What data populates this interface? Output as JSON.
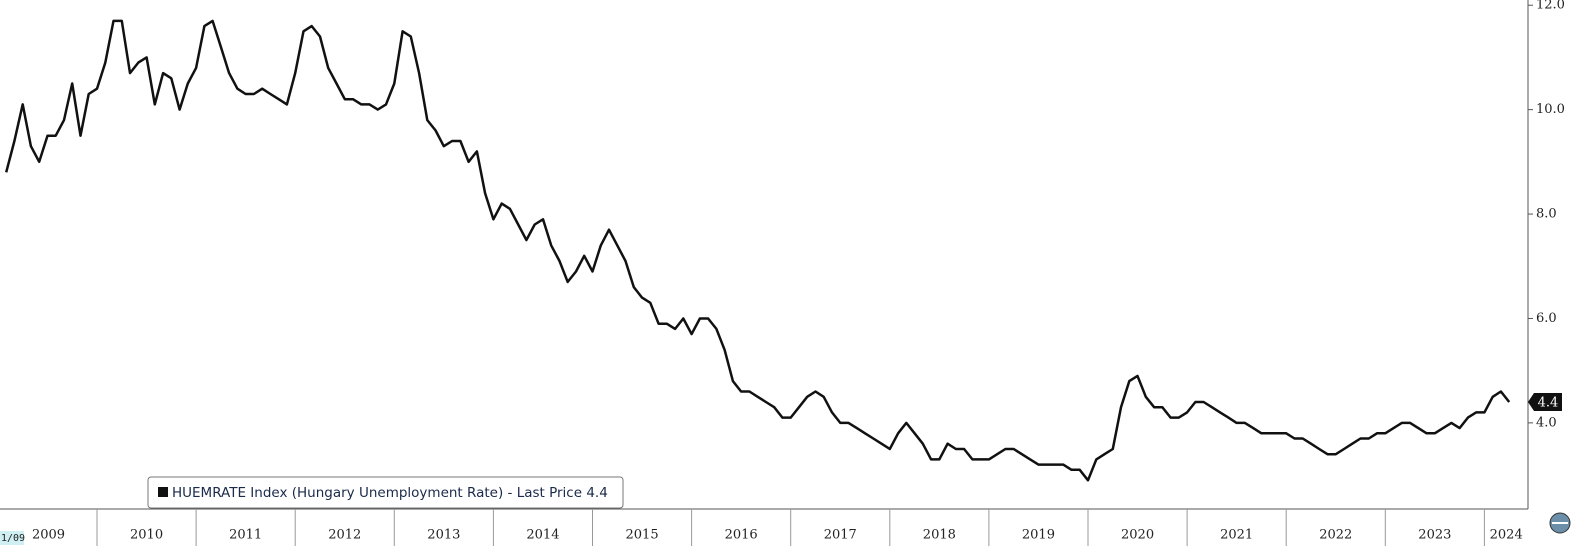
{
  "chart_data": {
    "type": "line",
    "range_start_label": "1/09",
    "x": [
      "2009-02",
      "2009-03",
      "2009-04",
      "2009-05",
      "2009-06",
      "2009-07",
      "2009-08",
      "2009-09",
      "2009-10",
      "2009-11",
      "2009-12",
      "2010-01",
      "2010-02",
      "2010-03",
      "2010-04",
      "2010-05",
      "2010-06",
      "2010-07",
      "2010-08",
      "2010-09",
      "2010-10",
      "2010-11",
      "2010-12",
      "2011-01",
      "2011-02",
      "2011-03",
      "2011-04",
      "2011-05",
      "2011-06",
      "2011-07",
      "2011-08",
      "2011-09",
      "2011-10",
      "2011-11",
      "2011-12",
      "2012-01",
      "2012-02",
      "2012-03",
      "2012-04",
      "2012-05",
      "2012-06",
      "2012-07",
      "2012-08",
      "2012-09",
      "2012-10",
      "2012-11",
      "2012-12",
      "2013-01",
      "2013-02",
      "2013-03",
      "2013-04",
      "2013-05",
      "2013-06",
      "2013-07",
      "2013-08",
      "2013-09",
      "2013-10",
      "2013-11",
      "2013-12",
      "2014-01",
      "2014-02",
      "2014-03",
      "2014-04",
      "2014-05",
      "2014-06",
      "2014-07",
      "2014-08",
      "2014-09",
      "2014-10",
      "2014-11",
      "2014-12",
      "2015-01",
      "2015-02",
      "2015-03",
      "2015-04",
      "2015-05",
      "2015-06",
      "2015-07",
      "2015-08",
      "2015-09",
      "2015-10",
      "2015-11",
      "2015-12",
      "2016-01",
      "2016-02",
      "2016-03",
      "2016-04",
      "2016-05",
      "2016-06",
      "2016-07",
      "2016-08",
      "2016-09",
      "2016-10",
      "2016-11",
      "2016-12",
      "2017-01",
      "2017-02",
      "2017-03",
      "2017-04",
      "2017-05",
      "2017-06",
      "2017-07",
      "2017-08",
      "2017-09",
      "2017-10",
      "2017-11",
      "2017-12",
      "2018-01",
      "2018-02",
      "2018-03",
      "2018-04",
      "2018-05",
      "2018-06",
      "2018-07",
      "2018-08",
      "2018-09",
      "2018-10",
      "2018-11",
      "2018-12",
      "2019-01",
      "2019-02",
      "2019-03",
      "2019-04",
      "2019-05",
      "2019-06",
      "2019-07",
      "2019-08",
      "2019-09",
      "2019-10",
      "2019-11",
      "2019-12",
      "2020-01",
      "2020-02",
      "2020-03",
      "2020-04",
      "2020-05",
      "2020-06",
      "2020-07",
      "2020-08",
      "2020-09",
      "2020-10",
      "2020-11",
      "2020-12",
      "2021-01",
      "2021-02",
      "2021-03",
      "2021-04",
      "2021-05",
      "2021-06",
      "2021-07",
      "2021-08",
      "2021-09",
      "2021-10",
      "2021-11",
      "2021-12",
      "2022-01",
      "2022-02",
      "2022-03",
      "2022-04",
      "2022-05",
      "2022-06",
      "2022-07",
      "2022-08",
      "2022-09",
      "2022-10",
      "2022-11",
      "2022-12",
      "2023-01",
      "2023-02",
      "2023-03",
      "2023-04",
      "2023-05",
      "2023-06",
      "2023-07",
      "2023-08",
      "2023-09",
      "2023-10",
      "2023-11",
      "2023-12",
      "2024-01",
      "2024-02",
      "2024-03",
      "2024-04"
    ],
    "series": [
      {
        "name": "HUEMRATE Index (Hungary Unemployment Rate) - Last Price 4.4",
        "color": "#111111",
        "values": [
          8.8,
          9.4,
          10.1,
          9.3,
          9.0,
          9.5,
          9.5,
          9.8,
          10.5,
          9.5,
          10.3,
          10.4,
          10.9,
          11.7,
          11.7,
          10.7,
          10.9,
          11.0,
          10.1,
          10.7,
          10.6,
          10.0,
          10.5,
          10.8,
          11.6,
          11.7,
          11.2,
          10.7,
          10.4,
          10.3,
          10.3,
          10.4,
          10.3,
          10.2,
          10.1,
          10.7,
          11.5,
          11.6,
          11.4,
          10.8,
          10.5,
          10.2,
          10.2,
          10.1,
          10.1,
          10.0,
          10.1,
          10.5,
          11.5,
          11.4,
          10.7,
          9.8,
          9.6,
          9.3,
          9.4,
          9.4,
          9.0,
          9.2,
          8.4,
          7.9,
          8.2,
          8.1,
          7.8,
          7.5,
          7.8,
          7.9,
          7.4,
          7.1,
          6.7,
          6.9,
          7.2,
          6.9,
          7.4,
          7.7,
          7.4,
          7.1,
          6.6,
          6.4,
          6.3,
          5.9,
          5.9,
          5.8,
          6.0,
          5.7,
          6.0,
          6.0,
          5.8,
          5.4,
          4.8,
          4.6,
          4.6,
          4.5,
          4.4,
          4.3,
          4.1,
          4.1,
          4.3,
          4.5,
          4.6,
          4.5,
          4.2,
          4.0,
          4.0,
          3.9,
          3.8,
          3.7,
          3.6,
          3.5,
          3.8,
          4.0,
          3.8,
          3.6,
          3.3,
          3.3,
          3.6,
          3.5,
          3.5,
          3.3,
          3.3,
          3.3,
          3.4,
          3.5,
          3.5,
          3.4,
          3.3,
          3.2,
          3.2,
          3.2,
          3.2,
          3.1,
          3.1,
          2.9,
          3.3,
          3.4,
          3.5,
          4.3,
          4.8,
          4.9,
          4.5,
          4.3,
          4.3,
          4.1,
          4.1,
          4.2,
          4.4,
          4.4,
          4.3,
          4.2,
          4.1,
          4.0,
          4.0,
          3.9,
          3.8,
          3.8,
          3.8,
          3.8,
          3.7,
          3.7,
          3.6,
          3.5,
          3.4,
          3.4,
          3.5,
          3.6,
          3.7,
          3.7,
          3.8,
          3.8,
          3.9,
          4.0,
          4.0,
          3.9,
          3.8,
          3.8,
          3.9,
          4.0,
          3.9,
          4.1,
          4.2,
          4.2,
          4.5,
          4.6,
          4.4
        ]
      }
    ],
    "last_price": 4.4,
    "ylim": [
      2.35,
      12.1
    ],
    "yticks": [
      {
        "value": 4,
        "label": "4.0"
      },
      {
        "value": 6,
        "label": "6.0"
      },
      {
        "value": 8,
        "label": "8.0"
      },
      {
        "value": 10,
        "label": "10.0"
      },
      {
        "value": 12,
        "label": "12.0"
      }
    ],
    "xticks": [
      2009,
      2010,
      2011,
      2012,
      2013,
      2014,
      2015,
      2016,
      2017,
      2018,
      2019,
      2020,
      2021,
      2022,
      2023,
      2024
    ]
  }
}
